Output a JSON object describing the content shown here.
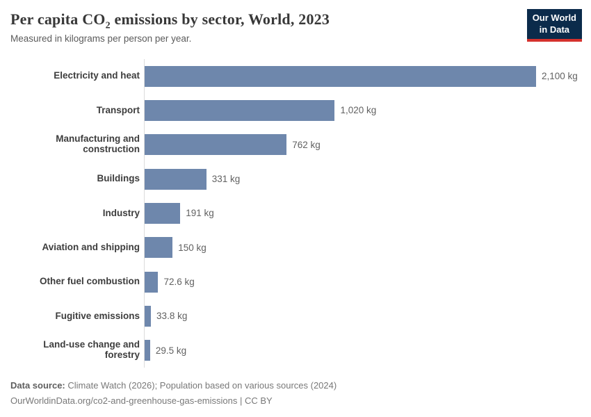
{
  "header": {
    "title_pre": "Per capita CO",
    "title_sub": "2",
    "title_post": " emissions by sector, World, 2023",
    "subtitle": "Measured in kilograms per person per year."
  },
  "logo": {
    "line1": "Our World",
    "line2": "in Data"
  },
  "chart_data": {
    "type": "bar",
    "orientation": "horizontal",
    "title": "Per capita CO2 emissions by sector, World, 2023",
    "subtitle": "Measured in kilograms per person per year.",
    "unit": "kg",
    "categories": [
      "Electricity and heat",
      "Transport",
      "Manufacturing and construction",
      "Buildings",
      "Industry",
      "Aviation and shipping",
      "Other fuel combustion",
      "Fugitive emissions",
      "Land-use change and forestry"
    ],
    "values": [
      2100,
      1020,
      762,
      331,
      191,
      150,
      72.6,
      33.8,
      29.5
    ],
    "value_labels": [
      "2,100 kg",
      "1,020 kg",
      "762 kg",
      "331 kg",
      "191 kg",
      "150 kg",
      "72.6 kg",
      "33.8 kg",
      "29.5 kg"
    ],
    "xlim": [
      0,
      2100
    ],
    "grid": "off",
    "legend": "none"
  },
  "colors": {
    "bar": "#6e87ac",
    "axis_line": "#dcdcdc",
    "logo_bg": "#0b2b4b",
    "logo_accent": "#d5312d"
  },
  "footer": {
    "datasource_label": "Data source:",
    "datasource_text": " Climate Watch (2026); Population based on various sources (2024)",
    "url_line": "OurWorldinData.org/co2-and-greenhouse-gas-emissions | CC BY"
  }
}
